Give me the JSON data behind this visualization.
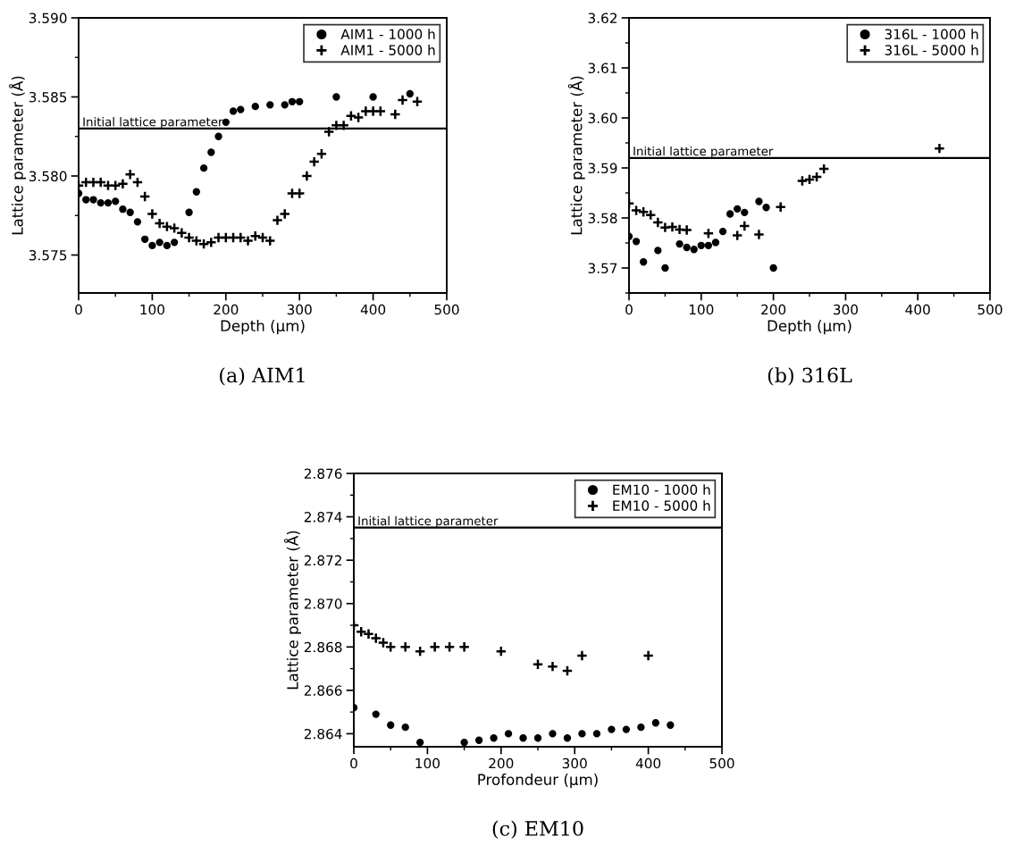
{
  "chart_data": [
    {
      "type": "scatter",
      "title": "(a) AIM1",
      "xlabel": "Depth (µm)",
      "ylabel": "Lattice parameter (Å)",
      "xlim": [
        0,
        500
      ],
      "xticks": [
        0,
        100,
        200,
        300,
        400,
        500
      ],
      "ylim": [
        3.5726,
        3.59
      ],
      "yticks": [
        {
          "value": 3.575,
          "label": "3.575"
        },
        {
          "value": 3.58,
          "label": "3.580"
        },
        {
          "value": 3.585,
          "label": "3.585"
        },
        {
          "value": 3.59,
          "label": "3.590"
        }
      ],
      "legend": "top right",
      "grid": false,
      "ref_lines": [
        {
          "axis": "y",
          "value": 3.583,
          "label": "Initial lattice parameter",
          "color": "#000000"
        }
      ],
      "series": [
        {
          "name": "AIM1 - 1000 h",
          "color": "#000000",
          "marker": "circle",
          "x": [
            0,
            10,
            20,
            30,
            40,
            50,
            60,
            70,
            80,
            90,
            100,
            110,
            120,
            130,
            150,
            160,
            170,
            180,
            190,
            200,
            210,
            220,
            240,
            260,
            280,
            290,
            300,
            350,
            400,
            450
          ],
          "values": [
            3.5789,
            3.5785,
            3.5785,
            3.5783,
            3.5783,
            3.5784,
            3.5779,
            3.5777,
            3.5771,
            3.576,
            3.5756,
            3.5758,
            3.5756,
            3.5758,
            3.5777,
            3.579,
            3.5805,
            3.5815,
            3.5825,
            3.5834,
            3.5841,
            3.5842,
            3.5844,
            3.5845,
            3.5845,
            3.5847,
            3.5847,
            3.585,
            3.585,
            3.5852
          ]
        },
        {
          "name": "AIM1 - 5000 h",
          "color": "#000000",
          "marker": "cross",
          "x": [
            0,
            10,
            20,
            30,
            40,
            50,
            60,
            70,
            80,
            90,
            100,
            110,
            120,
            130,
            140,
            150,
            160,
            170,
            180,
            190,
            200,
            210,
            220,
            230,
            240,
            250,
            260,
            270,
            280,
            290,
            300,
            310,
            320,
            330,
            340,
            350,
            360,
            370,
            380,
            390,
            400,
            410,
            430,
            440,
            460
          ],
          "values": [
            3.5794,
            3.5796,
            3.5796,
            3.5796,
            3.5794,
            3.5794,
            3.5795,
            3.5801,
            3.5796,
            3.5787,
            3.5776,
            3.577,
            3.5768,
            3.5767,
            3.5764,
            3.5761,
            3.5759,
            3.5757,
            3.5758,
            3.5761,
            3.5761,
            3.5761,
            3.5761,
            3.5759,
            3.5762,
            3.5761,
            3.5759,
            3.5772,
            3.5776,
            3.5789,
            3.5789,
            3.58,
            3.5809,
            3.5814,
            3.5828,
            3.5832,
            3.5832,
            3.5838,
            3.5837,
            3.5841,
            3.5841,
            3.5841,
            3.5839,
            3.5848,
            3.5847
          ]
        }
      ]
    },
    {
      "type": "scatter",
      "title": "(b) 316L",
      "xlabel": "Depth (µm)",
      "ylabel": "Lattice parameter (Å)",
      "xlim": [
        0,
        500
      ],
      "xticks": [
        0,
        100,
        200,
        300,
        400,
        500
      ],
      "ylim": [
        3.565,
        3.62
      ],
      "yticks": [
        {
          "value": 3.57,
          "label": "3.57"
        },
        {
          "value": 3.58,
          "label": "3.58"
        },
        {
          "value": 3.59,
          "label": "3.59"
        },
        {
          "value": 3.6,
          "label": "3.60"
        },
        {
          "value": 3.61,
          "label": "3.61"
        },
        {
          "value": 3.62,
          "label": "3.62"
        }
      ],
      "legend": "top right",
      "grid": false,
      "ref_lines": [
        {
          "axis": "y",
          "value": 3.592,
          "label": "Initial lattice parameter",
          "color": "#000000"
        }
      ],
      "series": [
        {
          "name": "316L - 1000 h",
          "color": "#000000",
          "marker": "circle",
          "x": [
            0,
            10,
            20,
            40,
            50,
            70,
            80,
            90,
            100,
            110,
            120,
            130,
            140,
            150,
            160,
            180,
            190,
            200
          ],
          "values": [
            3.5763,
            3.5753,
            3.5712,
            3.5735,
            3.57,
            3.5748,
            3.5741,
            3.5737,
            3.5745,
            3.5745,
            3.5751,
            3.5773,
            3.5808,
            3.5818,
            3.5811,
            3.5833,
            3.5821,
            3.57
          ]
        },
        {
          "name": "316L - 5000 h",
          "color": "#000000",
          "marker": "cross",
          "x": [
            0,
            10,
            20,
            30,
            40,
            50,
            60,
            70,
            80,
            110,
            150,
            160,
            180,
            210,
            240,
            250,
            260,
            270,
            430
          ],
          "values": [
            3.5829,
            3.5815,
            3.5812,
            3.5806,
            3.5791,
            3.5781,
            3.5782,
            3.5777,
            3.5776,
            3.5769,
            3.5765,
            3.5784,
            3.5767,
            3.5822,
            3.5874,
            3.5877,
            3.5882,
            3.5898,
            3.5939
          ]
        }
      ]
    },
    {
      "type": "scatter",
      "title": "(c) EM10",
      "xlabel": "Profondeur (µm)",
      "ylabel": "Lattice parameter (Å)",
      "xlim": [
        0,
        500
      ],
      "xticks": [
        0,
        100,
        200,
        300,
        400,
        500
      ],
      "ylim": [
        2.8634,
        2.876
      ],
      "yticks": [
        {
          "value": 2.864,
          "label": "2.864"
        },
        {
          "value": 2.866,
          "label": "2.866"
        },
        {
          "value": 2.868,
          "label": "2.868"
        },
        {
          "value": 2.87,
          "label": "2.870"
        },
        {
          "value": 2.872,
          "label": "2.872"
        },
        {
          "value": 2.874,
          "label": "2.874"
        },
        {
          "value": 2.876,
          "label": "2.876"
        }
      ],
      "legend": "top right",
      "grid": false,
      "ref_lines": [
        {
          "axis": "y",
          "value": 2.8735,
          "label": "Initial lattice parameter",
          "color": "#000000"
        }
      ],
      "series": [
        {
          "name": "EM10 - 1000 h",
          "color": "#000000",
          "marker": "circle",
          "x": [
            0,
            30,
            50,
            70,
            90,
            150,
            170,
            190,
            210,
            230,
            250,
            270,
            290,
            310,
            330,
            350,
            370,
            390,
            410,
            430
          ],
          "values": [
            2.8652,
            2.8649,
            2.8644,
            2.8643,
            2.8636,
            2.8636,
            2.8637,
            2.8638,
            2.864,
            2.8638,
            2.8638,
            2.864,
            2.8638,
            2.864,
            2.864,
            2.8642,
            2.8642,
            2.8643,
            2.8645,
            2.8644
          ]
        },
        {
          "name": "EM10 - 5000 h",
          "color": "#000000",
          "marker": "cross",
          "x": [
            0,
            10,
            20,
            30,
            40,
            50,
            70,
            90,
            110,
            130,
            150,
            200,
            250,
            270,
            290,
            310,
            400
          ],
          "values": [
            2.869,
            2.8687,
            2.8686,
            2.8684,
            2.8682,
            2.868,
            2.868,
            2.8678,
            2.868,
            2.868,
            2.868,
            2.8678,
            2.8672,
            2.8671,
            2.8669,
            2.8676,
            2.8676
          ]
        }
      ]
    }
  ]
}
